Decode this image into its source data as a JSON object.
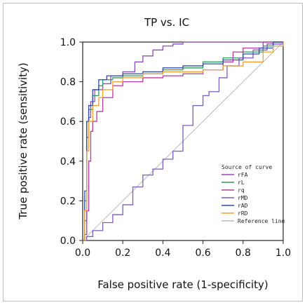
{
  "chart_data": {
    "type": "line",
    "title": "TP vs. IC",
    "xlabel": "False positive rate (1-specificity)",
    "ylabel": "True positive rate (sensitivity)",
    "xlim": [
      0,
      1
    ],
    "ylim": [
      0,
      1
    ],
    "xticks": [
      "0.0",
      "0.2",
      "0.4",
      "0.6",
      "0.8",
      "1.0"
    ],
    "yticks": [
      "0.0",
      "0.2",
      "0.4",
      "0.6",
      "0.8",
      "1.0"
    ],
    "grid": false,
    "legend": {
      "title": "Source of curve",
      "placement": "bottom-right"
    },
    "series": [
      {
        "name": "rFA",
        "color": "#8e4dbf",
        "points": [
          [
            0,
            0
          ],
          [
            0.01,
            0.1
          ],
          [
            0.02,
            0.52
          ],
          [
            0.03,
            0.62
          ],
          [
            0.04,
            0.7
          ],
          [
            0.06,
            0.76
          ],
          [
            0.1,
            0.79
          ],
          [
            0.14,
            0.83
          ],
          [
            0.2,
            0.85
          ],
          [
            0.26,
            0.9
          ],
          [
            0.3,
            0.93
          ],
          [
            0.35,
            0.96
          ],
          [
            0.4,
            0.98
          ],
          [
            0.45,
            0.99
          ],
          [
            0.5,
            1.0
          ],
          [
            0.6,
            1.0
          ],
          [
            0.8,
            1.0
          ],
          [
            1.0,
            1.0
          ]
        ]
      },
      {
        "name": "rL",
        "color": "#2e9a5b",
        "points": [
          [
            0,
            0
          ],
          [
            0.01,
            0.2
          ],
          [
            0.02,
            0.6
          ],
          [
            0.03,
            0.66
          ],
          [
            0.05,
            0.73
          ],
          [
            0.08,
            0.78
          ],
          [
            0.1,
            0.81
          ],
          [
            0.15,
            0.82
          ],
          [
            0.2,
            0.83
          ],
          [
            0.3,
            0.84
          ],
          [
            0.4,
            0.86
          ],
          [
            0.5,
            0.87
          ],
          [
            0.6,
            0.9
          ],
          [
            0.7,
            0.92
          ],
          [
            0.8,
            0.95
          ],
          [
            0.9,
            0.98
          ],
          [
            0.95,
            1.0
          ],
          [
            1.0,
            1.0
          ]
        ]
      },
      {
        "name": "rq",
        "color": "#b53b9e",
        "points": [
          [
            0,
            0
          ],
          [
            0.01,
            0.03
          ],
          [
            0.02,
            0.15
          ],
          [
            0.03,
            0.4
          ],
          [
            0.04,
            0.55
          ],
          [
            0.05,
            0.6
          ],
          [
            0.07,
            0.65
          ],
          [
            0.1,
            0.72
          ],
          [
            0.15,
            0.78
          ],
          [
            0.2,
            0.8
          ],
          [
            0.3,
            0.82
          ],
          [
            0.4,
            0.83
          ],
          [
            0.5,
            0.84
          ],
          [
            0.6,
            0.86
          ],
          [
            0.7,
            0.9
          ],
          [
            0.75,
            0.95
          ],
          [
            0.8,
            0.97
          ],
          [
            0.9,
            1.0
          ],
          [
            1.0,
            1.0
          ]
        ]
      },
      {
        "name": "rMD",
        "color": "#7b5cbf",
        "points": [
          [
            0,
            0
          ],
          [
            0.02,
            0.02
          ],
          [
            0.05,
            0.05
          ],
          [
            0.1,
            0.09
          ],
          [
            0.15,
            0.13
          ],
          [
            0.2,
            0.18
          ],
          [
            0.25,
            0.27
          ],
          [
            0.3,
            0.33
          ],
          [
            0.35,
            0.36
          ],
          [
            0.4,
            0.41
          ],
          [
            0.45,
            0.45
          ],
          [
            0.5,
            0.58
          ],
          [
            0.55,
            0.68
          ],
          [
            0.6,
            0.73
          ],
          [
            0.63,
            0.75
          ],
          [
            0.68,
            0.82
          ],
          [
            0.72,
            0.88
          ],
          [
            0.78,
            0.92
          ],
          [
            0.85,
            0.96
          ],
          [
            0.92,
            0.99
          ],
          [
            1.0,
            1.0
          ]
        ]
      },
      {
        "name": "rAD",
        "color": "#2e4aa8",
        "points": [
          [
            0,
            0
          ],
          [
            0.01,
            0.25
          ],
          [
            0.02,
            0.6
          ],
          [
            0.03,
            0.68
          ],
          [
            0.05,
            0.76
          ],
          [
            0.08,
            0.81
          ],
          [
            0.12,
            0.83
          ],
          [
            0.2,
            0.84
          ],
          [
            0.3,
            0.85
          ],
          [
            0.4,
            0.87
          ],
          [
            0.5,
            0.88
          ],
          [
            0.6,
            0.89
          ],
          [
            0.7,
            0.91
          ],
          [
            0.8,
            0.94
          ],
          [
            0.88,
            0.97
          ],
          [
            0.95,
            1.0
          ],
          [
            1.0,
            1.0
          ]
        ]
      },
      {
        "name": "rRD",
        "color": "#f0a030",
        "points": [
          [
            0,
            0
          ],
          [
            0.01,
            0.15
          ],
          [
            0.02,
            0.45
          ],
          [
            0.03,
            0.6
          ],
          [
            0.05,
            0.68
          ],
          [
            0.08,
            0.72
          ],
          [
            0.1,
            0.76
          ],
          [
            0.15,
            0.8
          ],
          [
            0.2,
            0.82
          ],
          [
            0.3,
            0.84
          ],
          [
            0.4,
            0.85
          ],
          [
            0.5,
            0.85
          ],
          [
            0.6,
            0.86
          ],
          [
            0.7,
            0.88
          ],
          [
            0.8,
            0.9
          ],
          [
            0.9,
            0.95
          ],
          [
            0.95,
            0.98
          ],
          [
            1.0,
            1.0
          ]
        ]
      },
      {
        "name": "Reference line",
        "color": "#b9b9b9",
        "points": [
          [
            0,
            0
          ],
          [
            1,
            1
          ]
        ]
      }
    ]
  }
}
